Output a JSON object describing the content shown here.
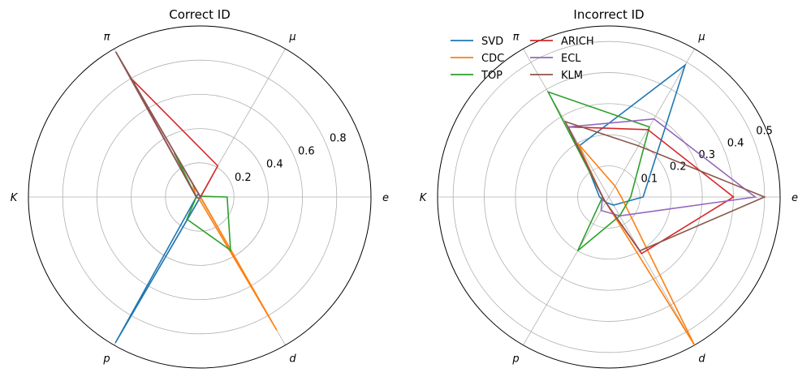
{
  "chart_data": [
    {
      "type": "radar",
      "title": "Correct ID",
      "axes": [
        "e",
        "μ",
        "π",
        "K",
        "p",
        "d"
      ],
      "axis_labels": [
        "e",
        "μ",
        "π",
        "K",
        "p",
        "d"
      ],
      "rlim": [
        0,
        1.0
      ],
      "rticks": [
        0.2,
        0.4,
        0.6,
        0.8
      ],
      "rtick_labels": [
        "0.2",
        "0.4",
        "0.6",
        "0.8"
      ],
      "grid": true,
      "series": [
        {
          "name": "SVD",
          "color": "#1f77b4",
          "values": [
            0.005,
            0.005,
            0.02,
            0.02,
            0.985,
            0.005
          ]
        },
        {
          "name": "CDC",
          "color": "#ff7f0e",
          "values": [
            0.005,
            0.005,
            0.08,
            0.02,
            0.01,
            0.9
          ]
        },
        {
          "name": "TOP",
          "color": "#2ca02c",
          "values": [
            0.16,
            0.005,
            0.3,
            0.02,
            0.15,
            0.36
          ]
        },
        {
          "name": "ARICH",
          "color": "#d62728",
          "values": [
            0.005,
            0.21,
            0.8,
            0.02,
            0.01,
            0.005
          ]
        },
        {
          "name": "ECL",
          "color": "#9467bd",
          "values": [
            0.005,
            0.005,
            0.98,
            0.02,
            0.01,
            0.005
          ]
        },
        {
          "name": "KLM",
          "color": "#8c564b",
          "values": [
            0.005,
            0.005,
            0.98,
            0.02,
            0.01,
            0.005
          ]
        }
      ]
    },
    {
      "type": "radar",
      "title": "Incorrect ID",
      "axes": [
        "e",
        "μ",
        "π",
        "K",
        "p",
        "d"
      ],
      "axis_labels": [
        "e",
        "μ",
        "π",
        "K",
        "p",
        "d"
      ],
      "rlim": [
        0,
        0.55
      ],
      "rticks": [
        0.1,
        0.2,
        0.3,
        0.4,
        0.5
      ],
      "rtick_labels": [
        "0.1",
        "0.2",
        "0.3",
        "0.4",
        "0.5"
      ],
      "grid": true,
      "legend": "top-left",
      "series": [
        {
          "name": "SVD",
          "color": "#1f77b4",
          "values": [
            0.11,
            0.49,
            0.19,
            0.03,
            0.02,
            0.03
          ]
        },
        {
          "name": "CDC",
          "color": "#ff7f0e",
          "values": [
            0.04,
            0.04,
            0.2,
            0.02,
            0.02,
            0.55
          ]
        },
        {
          "name": "TOP",
          "color": "#2ca02c",
          "values": [
            0.07,
            0.26,
            0.39,
            0.02,
            0.2,
            0.07
          ]
        },
        {
          "name": "ARICH",
          "color": "#d62728",
          "values": [
            0.4,
            0.25,
            0.26,
            0.02,
            0.02,
            0.21
          ]
        },
        {
          "name": "ECL",
          "color": "#9467bd",
          "values": [
            0.47,
            0.29,
            0.26,
            0.02,
            0.05,
            0.07
          ]
        },
        {
          "name": "KLM",
          "color": "#8c564b",
          "values": [
            0.5,
            0.19,
            0.28,
            0.02,
            0.02,
            0.2
          ]
        }
      ]
    }
  ]
}
